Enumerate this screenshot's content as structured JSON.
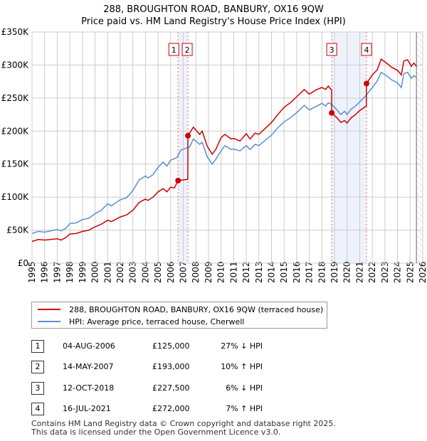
{
  "header": {
    "title": "288, BROUGHTON ROAD, BANBURY, OX16 9QW",
    "subtitle": "Price paid vs. HM Land Registry's House Price Index (HPI)"
  },
  "chart_data": {
    "type": "line",
    "title": "288, BROUGHTON ROAD, BANBURY, OX16 9QW",
    "subtitle": "Price paid vs. HM Land Registry's House Price Index (HPI)",
    "xlim": [
      1995,
      2026
    ],
    "ylim": [
      0,
      350000
    ],
    "y_ticks": [
      {
        "v": 0,
        "label": "£0"
      },
      {
        "v": 50000,
        "label": "£50K"
      },
      {
        "v": 100000,
        "label": "£100K"
      },
      {
        "v": 150000,
        "label": "£150K"
      },
      {
        "v": 200000,
        "label": "£200K"
      },
      {
        "v": 250000,
        "label": "£250K"
      },
      {
        "v": 300000,
        "label": "£300K"
      },
      {
        "v": 350000,
        "label": "£350K"
      }
    ],
    "x_ticks": [
      "1995",
      "1996",
      "1997",
      "1998",
      "1999",
      "2000",
      "2001",
      "2002",
      "2003",
      "2004",
      "2005",
      "2006",
      "2007",
      "2008",
      "2009",
      "2010",
      "2011",
      "2012",
      "2013",
      "2014",
      "2015",
      "2016",
      "2017",
      "2018",
      "2019",
      "2020",
      "2021",
      "2022",
      "2023",
      "2024",
      "2025",
      "2026"
    ],
    "grid": true,
    "colors": {
      "property": "#cc0000",
      "hpi": "#5b8fd0",
      "shade": "#eef2fc",
      "vline": "#ee6666"
    },
    "series": [
      {
        "name": "288, BROUGHTON ROAD, BANBURY, OX16 9QW (terraced house)",
        "key": "property",
        "points": [
          [
            1995,
            33000
          ],
          [
            1995.5,
            36000
          ],
          [
            1996,
            35000
          ],
          [
            1996.5,
            36000
          ],
          [
            1997,
            37000
          ],
          [
            1997.3,
            35000
          ],
          [
            1997.7,
            39000
          ],
          [
            1998,
            44000
          ],
          [
            1998.5,
            45000
          ],
          [
            1999,
            48000
          ],
          [
            1999.5,
            50000
          ],
          [
            2000,
            55000
          ],
          [
            2000.5,
            59000
          ],
          [
            2001,
            65000
          ],
          [
            2001.3,
            63000
          ],
          [
            2002,
            70000
          ],
          [
            2002.5,
            73000
          ],
          [
            2003,
            80000
          ],
          [
            2003.5,
            92000
          ],
          [
            2004,
            97000
          ],
          [
            2004.2,
            95000
          ],
          [
            2004.6,
            100000
          ],
          [
            2005,
            108000
          ],
          [
            2005.4,
            113000
          ],
          [
            2005.7,
            108000
          ],
          [
            2006,
            115000
          ],
          [
            2006.3,
            114000
          ],
          [
            2006.59,
            125000
          ],
          [
            2007.36,
            127000
          ],
          [
            2007.37,
            193000
          ],
          [
            2007.8,
            206000
          ],
          [
            2008.3,
            195000
          ],
          [
            2008.5,
            200000
          ],
          [
            2008.9,
            177000
          ],
          [
            2009.3,
            165000
          ],
          [
            2009.6,
            173000
          ],
          [
            2010,
            190000
          ],
          [
            2010.3,
            195000
          ],
          [
            2010.8,
            188000
          ],
          [
            2011,
            189000
          ],
          [
            2011.5,
            185000
          ],
          [
            2012,
            196000
          ],
          [
            2012.3,
            188000
          ],
          [
            2012.7,
            197000
          ],
          [
            2013,
            195000
          ],
          [
            2013.5,
            204000
          ],
          [
            2014,
            213000
          ],
          [
            2014.5,
            225000
          ],
          [
            2015,
            236000
          ],
          [
            2015.5,
            243000
          ],
          [
            2016,
            252000
          ],
          [
            2016.6,
            263000
          ],
          [
            2017,
            256000
          ],
          [
            2017.5,
            262000
          ],
          [
            2018,
            266000
          ],
          [
            2018.3,
            263000
          ],
          [
            2018.5,
            268000
          ],
          [
            2018.77,
            262000
          ],
          [
            2018.78,
            227500
          ],
          [
            2019.2,
            220000
          ],
          [
            2019.5,
            213000
          ],
          [
            2019.8,
            216000
          ],
          [
            2020,
            212000
          ],
          [
            2020.3,
            220000
          ],
          [
            2020.6,
            224000
          ],
          [
            2021,
            231000
          ],
          [
            2021.53,
            238000
          ],
          [
            2021.54,
            272000
          ],
          [
            2022,
            285000
          ],
          [
            2022.4,
            293000
          ],
          [
            2022.7,
            309000
          ],
          [
            2023.2,
            302000
          ],
          [
            2023.5,
            297000
          ],
          [
            2024,
            292000
          ],
          [
            2024.3,
            285000
          ],
          [
            2024.5,
            306000
          ],
          [
            2024.8,
            308000
          ],
          [
            2025.1,
            298000
          ],
          [
            2025.3,
            303000
          ],
          [
            2025.5,
            298000
          ]
        ]
      },
      {
        "name": "HPI: Average price, terraced house, Cherwell",
        "key": "hpi",
        "points": [
          [
            1995,
            45000
          ],
          [
            1995.5,
            48000
          ],
          [
            1996,
            47000
          ],
          [
            1996.5,
            49000
          ],
          [
            1997,
            51000
          ],
          [
            1997.3,
            49000
          ],
          [
            1997.7,
            53000
          ],
          [
            1998,
            60000
          ],
          [
            1998.5,
            61000
          ],
          [
            1999,
            66000
          ],
          [
            1999.5,
            68000
          ],
          [
            2000,
            75000
          ],
          [
            2000.5,
            80000
          ],
          [
            2001,
            90000
          ],
          [
            2001.3,
            87000
          ],
          [
            2002,
            96000
          ],
          [
            2002.5,
            99000
          ],
          [
            2003,
            110000
          ],
          [
            2003.5,
            126000
          ],
          [
            2004,
            132000
          ],
          [
            2004.2,
            129000
          ],
          [
            2004.6,
            134000
          ],
          [
            2005,
            145000
          ],
          [
            2005.4,
            153000
          ],
          [
            2005.7,
            147000
          ],
          [
            2006,
            156000
          ],
          [
            2006.5,
            160000
          ],
          [
            2006.8,
            171000
          ],
          [
            2007.2,
            174000
          ],
          [
            2007.5,
            176000
          ],
          [
            2007.8,
            188000
          ],
          [
            2008.3,
            180000
          ],
          [
            2008.5,
            183000
          ],
          [
            2008.9,
            161000
          ],
          [
            2009.3,
            150000
          ],
          [
            2009.6,
            158000
          ],
          [
            2010,
            170000
          ],
          [
            2010.3,
            178000
          ],
          [
            2010.8,
            172000
          ],
          [
            2011,
            173000
          ],
          [
            2011.5,
            170000
          ],
          [
            2012,
            178000
          ],
          [
            2012.3,
            172000
          ],
          [
            2012.7,
            180000
          ],
          [
            2013,
            178000
          ],
          [
            2013.5,
            186000
          ],
          [
            2014,
            194000
          ],
          [
            2014.5,
            205000
          ],
          [
            2015,
            214000
          ],
          [
            2015.5,
            220000
          ],
          [
            2016,
            228000
          ],
          [
            2016.6,
            239000
          ],
          [
            2017,
            232000
          ],
          [
            2017.5,
            237000
          ],
          [
            2018,
            242000
          ],
          [
            2018.3,
            238000
          ],
          [
            2018.5,
            243000
          ],
          [
            2018.8,
            240000
          ],
          [
            2019.2,
            232000
          ],
          [
            2019.5,
            225000
          ],
          [
            2019.8,
            230000
          ],
          [
            2020,
            225000
          ],
          [
            2020.3,
            233000
          ],
          [
            2020.6,
            237000
          ],
          [
            2021,
            244000
          ],
          [
            2021.5,
            254000
          ],
          [
            2022,
            266000
          ],
          [
            2022.4,
            276000
          ],
          [
            2022.7,
            289000
          ],
          [
            2023.2,
            283000
          ],
          [
            2023.5,
            278000
          ],
          [
            2024,
            273000
          ],
          [
            2024.3,
            266000
          ],
          [
            2024.5,
            287000
          ],
          [
            2024.8,
            289000
          ],
          [
            2025.1,
            280000
          ],
          [
            2025.3,
            284000
          ],
          [
            2025.5,
            281000
          ]
        ]
      }
    ],
    "sales": [
      {
        "n": "1",
        "x": 2006.59,
        "y": 125000
      },
      {
        "n": "2",
        "x": 2007.37,
        "y": 193000
      },
      {
        "n": "3",
        "x": 2018.78,
        "y": 227500
      },
      {
        "n": "4",
        "x": 2021.54,
        "y": 272000
      }
    ],
    "shaded_ranges": [
      [
        2006.59,
        2007.37
      ],
      [
        2018.78,
        2021.54
      ]
    ],
    "forecast_from": 2025.5
  },
  "legend": {
    "property": "288, BROUGHTON ROAD, BANBURY, OX16 9QW (terraced house)",
    "hpi": "HPI: Average price, terraced house, Cherwell"
  },
  "table": [
    {
      "n": "1",
      "date": "04-AUG-2006",
      "price": "£125,000",
      "diff": "27% ↓ HPI"
    },
    {
      "n": "2",
      "date": "14-MAY-2007",
      "price": "£193,000",
      "diff": "10% ↑ HPI"
    },
    {
      "n": "3",
      "date": "12-OCT-2018",
      "price": "£227,500",
      "diff": "6% ↓ HPI"
    },
    {
      "n": "4",
      "date": "16-JUL-2021",
      "price": "£272,000",
      "diff": "7% ↑ HPI"
    }
  ],
  "footer": {
    "line1": "Contains HM Land Registry data © Crown copyright and database right 2025.",
    "line2": "This data is licensed under the Open Government Licence v3.0."
  }
}
